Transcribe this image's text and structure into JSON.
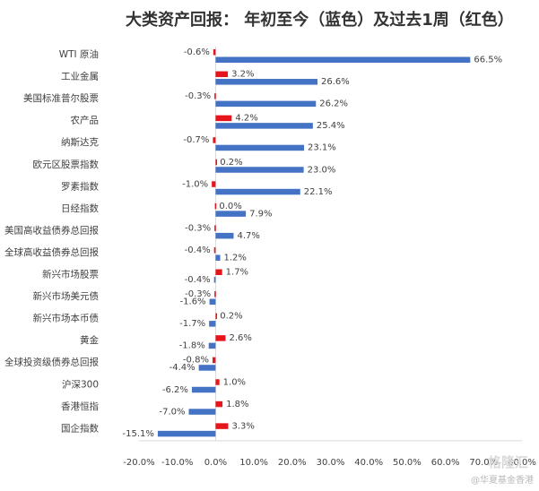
{
  "chart_data": {
    "type": "bar",
    "orientation": "horizontal",
    "title": "大类资产回报： 年初至今（蓝色）及过去1周（红色）",
    "categories": [
      "WTI 原油",
      "工业金属",
      "美国标准普尔股票",
      "农产品",
      "纳斯达克",
      "欧元区股票指数",
      "罗素指数",
      "日经指数",
      "美国高收益债券总回报",
      "全球高收益债券总回报",
      "新兴市场股票",
      "新兴市场美元债",
      "新兴市场本币债",
      "黄金",
      "全球投资级债券总回报",
      "沪深300",
      "香港恒指",
      "国企指数"
    ],
    "series": [
      {
        "color": "#e8141b",
        "values": [
          -0.6,
          3.2,
          -0.3,
          4.2,
          -0.7,
          0.2,
          -1.0,
          0.0,
          -0.3,
          -0.4,
          1.7,
          -0.3,
          0.2,
          2.6,
          -0.8,
          1.0,
          1.8,
          3.3
        ]
      },
      {
        "color": "#4472c4",
        "values": [
          66.5,
          26.6,
          26.2,
          25.4,
          23.1,
          23.0,
          22.1,
          7.9,
          4.7,
          1.2,
          -0.4,
          -1.6,
          -1.7,
          -1.8,
          -4.4,
          -6.2,
          -7.0,
          -15.1
        ]
      }
    ],
    "xlim": [
      -20,
      80
    ],
    "ticks": [
      "-20.0%",
      "-10.0%",
      "0.0%",
      "10.0%",
      "20.0%",
      "30.0%",
      "40.0%",
      "50.0%",
      "60.0%",
      "70.0%",
      "80.0%"
    ],
    "grid": false,
    "legend": "none"
  },
  "watermark": "@华夏基金香港",
  "watermark2": "格隆汇"
}
